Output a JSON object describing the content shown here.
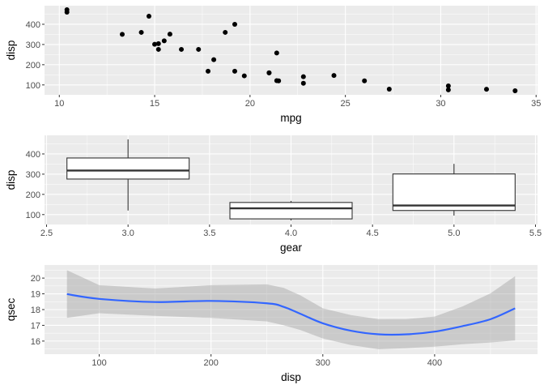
{
  "chart_data": [
    {
      "type": "scatter",
      "xlabel": "mpg",
      "ylabel": "disp",
      "xlim": [
        9.225,
        35.075
      ],
      "ylim": [
        51.05,
        492.05
      ],
      "xticks": [
        10,
        15,
        20,
        25,
        30,
        35
      ],
      "yticks": [
        100,
        200,
        300,
        400
      ],
      "grid": true,
      "point_color": "#000000",
      "x": [
        21,
        21,
        22.8,
        21.4,
        18.7,
        18.1,
        14.3,
        24.4,
        22.8,
        19.2,
        17.8,
        16.4,
        17.3,
        15.2,
        10.4,
        10.4,
        14.7,
        32.4,
        30.4,
        33.9,
        21.5,
        15.5,
        15.2,
        13.3,
        19.2,
        27.3,
        26,
        30.4,
        15.8,
        19.7,
        15,
        21.4
      ],
      "y": [
        160,
        160,
        108,
        258,
        360,
        225,
        360,
        146.7,
        140.8,
        167.6,
        167.6,
        275.8,
        275.8,
        275.8,
        472,
        460,
        440,
        78.7,
        75.7,
        71.1,
        120.1,
        318,
        304,
        350,
        400,
        79,
        120.3,
        95.1,
        351,
        145,
        301,
        121
      ]
    },
    {
      "type": "boxplot",
      "xlabel": "gear",
      "ylabel": "disp",
      "xlim": [
        2.4875,
        5.5125
      ],
      "ylim": [
        51.05,
        492.05
      ],
      "xticks": [
        "2.5",
        "3.0",
        "3.5",
        "4.0",
        "4.5",
        "5.0",
        "5.5"
      ],
      "yticks": [
        100,
        200,
        300,
        400
      ],
      "grid": true,
      "boxes": [
        {
          "x": 3,
          "min": 120.1,
          "q1": 275.8,
          "median": 318,
          "q3": 380,
          "max": 472
        },
        {
          "x": 4,
          "min": 71.1,
          "q1": 78.85,
          "median": 130.9,
          "q3": 160,
          "max": 167.6
        },
        {
          "x": 5,
          "min": 95.1,
          "q1": 120.3,
          "median": 145,
          "q3": 301,
          "max": 351
        }
      ]
    },
    {
      "type": "line",
      "xlabel": "disp",
      "ylabel": "qsec",
      "xlim": [
        51.05,
        492.05
      ],
      "ylim": [
        15.17,
        20.83
      ],
      "xticks": [
        100,
        200,
        300,
        400
      ],
      "yticks": [
        16,
        17,
        18,
        19,
        20
      ],
      "grid": true,
      "line_color": "#3366ff",
      "ribbon_color": "#999999",
      "x": [
        71.1,
        100,
        150,
        200,
        250,
        265,
        280,
        300,
        325,
        350,
        375,
        400,
        425,
        450,
        472
      ],
      "y": [
        18.98,
        18.68,
        18.48,
        18.55,
        18.4,
        18.17,
        17.73,
        17.13,
        16.66,
        16.43,
        16.43,
        16.6,
        16.95,
        17.39,
        18.08
      ],
      "upper": [
        20.5,
        19.55,
        19.34,
        19.55,
        19.6,
        19.38,
        18.9,
        18.08,
        17.65,
        17.39,
        17.4,
        17.56,
        18.2,
        19.03,
        20.12
      ],
      "lower": [
        17.47,
        17.77,
        17.6,
        17.47,
        17.25,
        17.0,
        16.7,
        16.17,
        15.75,
        15.48,
        15.55,
        15.65,
        15.8,
        15.91,
        16.04
      ]
    }
  ]
}
